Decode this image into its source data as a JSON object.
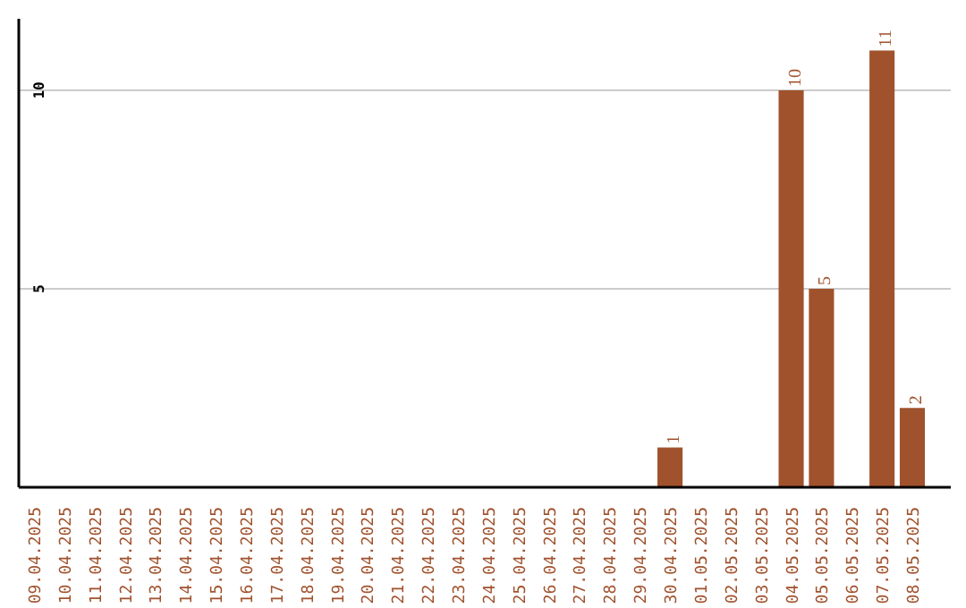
{
  "chart_data": {
    "type": "bar",
    "categories": [
      "09.04.2025",
      "10.04.2025",
      "11.04.2025",
      "12.04.2025",
      "13.04.2025",
      "14.04.2025",
      "15.04.2025",
      "16.04.2025",
      "17.04.2025",
      "18.04.2025",
      "19.04.2025",
      "20.04.2025",
      "21.04.2025",
      "22.04.2025",
      "23.04.2025",
      "24.04.2025",
      "25.04.2025",
      "26.04.2025",
      "27.04.2025",
      "28.04.2025",
      "29.04.2025",
      "30.04.2025",
      "01.05.2025",
      "02.05.2025",
      "03.05.2025",
      "04.05.2025",
      "05.05.2025",
      "06.05.2025",
      "07.05.2025",
      "08.05.2025"
    ],
    "values": [
      0,
      0,
      0,
      0,
      0,
      0,
      0,
      0,
      0,
      0,
      0,
      0,
      0,
      0,
      0,
      0,
      0,
      0,
      0,
      0,
      0,
      1,
      0,
      0,
      0,
      10,
      5,
      0,
      11,
      2
    ],
    "value_labels": [
      null,
      null,
      null,
      null,
      null,
      null,
      null,
      null,
      null,
      null,
      null,
      null,
      null,
      null,
      null,
      null,
      null,
      null,
      null,
      null,
      null,
      "1",
      null,
      null,
      null,
      "10",
      "5",
      null,
      "11",
      "2"
    ],
    "color": "#a0522d",
    "ylim": [
      0,
      11.8
    ],
    "yticks": [
      5,
      10
    ],
    "grid": "y"
  }
}
